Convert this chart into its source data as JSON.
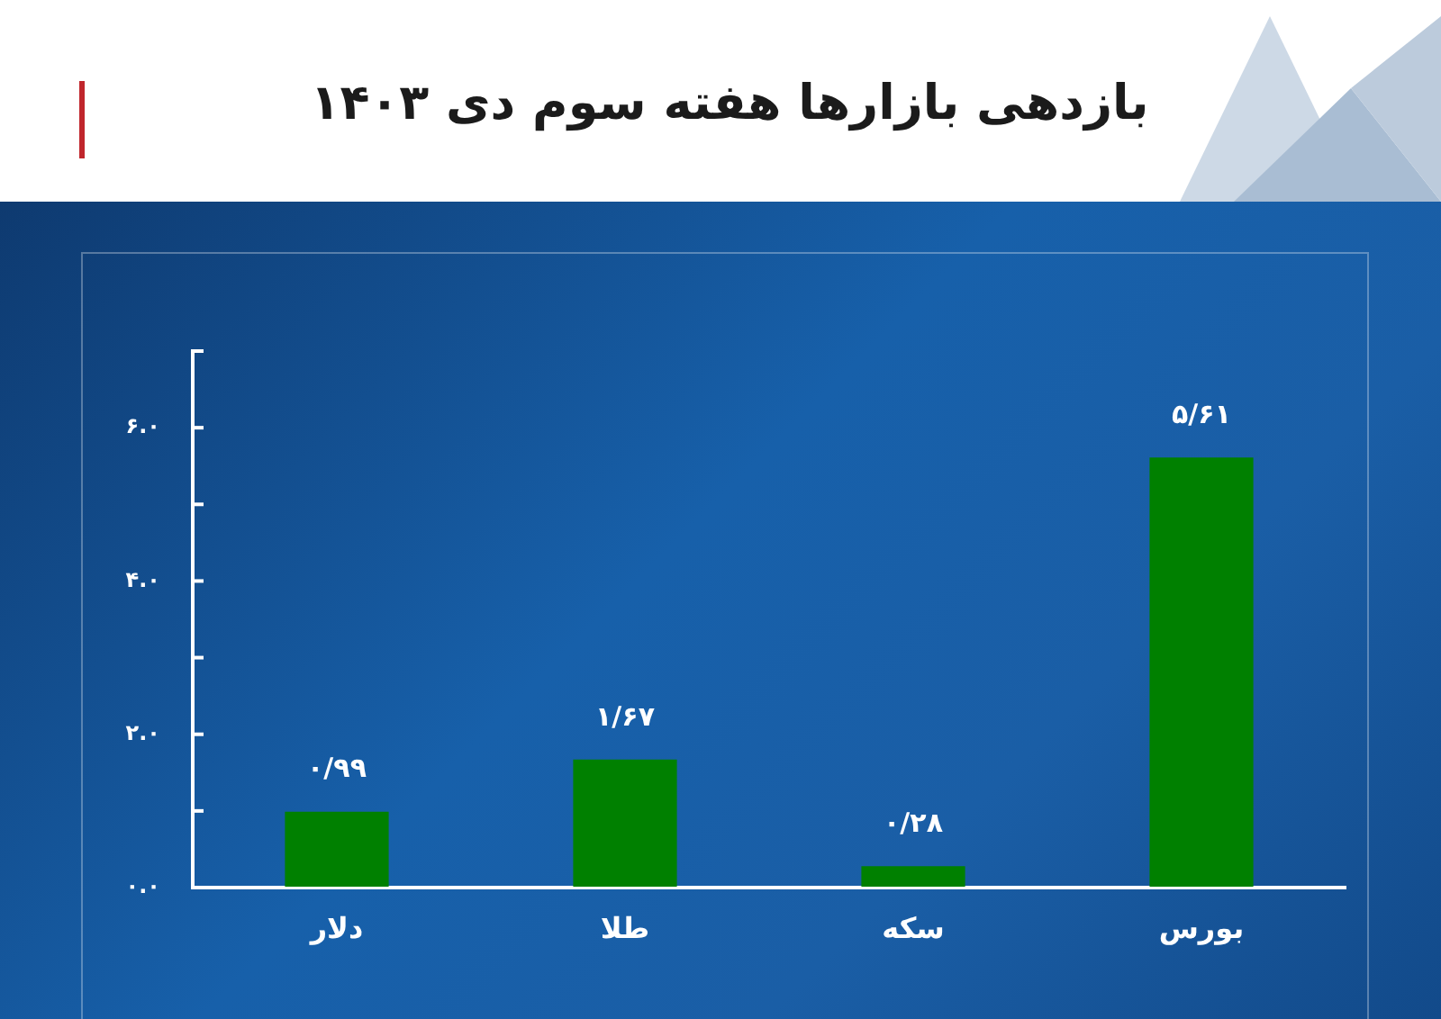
{
  "chart_data": {
    "type": "bar",
    "title": "بازدهی بازارها هفته سوم دی ۱۴۰۳",
    "categories": [
      "دلار",
      "طلا",
      "سکه",
      "بورس"
    ],
    "values": [
      0.99,
      1.67,
      0.28,
      5.61
    ],
    "color": "#008000",
    "value_labels": [
      "۰/۹۹",
      "۱/۶۷",
      "۰/۲۸",
      "۵/۶۱"
    ],
    "ylim": [
      0,
      7
    ],
    "yticks": [
      {
        "value": 0,
        "label": "۰.۰"
      },
      {
        "value": 1,
        "label": null
      },
      {
        "value": 2,
        "label": "۲.۰"
      },
      {
        "value": 3,
        "label": null
      },
      {
        "value": 4,
        "label": "۴.۰"
      },
      {
        "value": 5,
        "label": null
      },
      {
        "value": 6,
        "label": "۶.۰"
      },
      {
        "value": 7,
        "label": null
      }
    ],
    "grid": false,
    "legend": false
  }
}
